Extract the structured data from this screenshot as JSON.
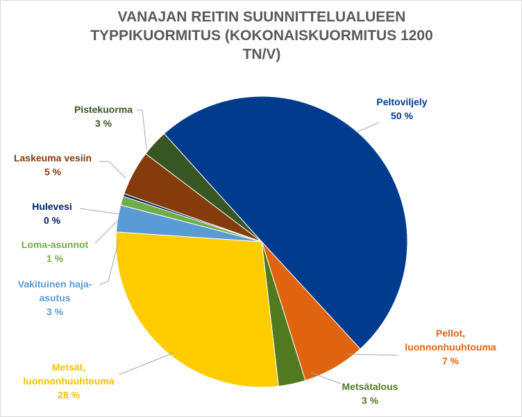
{
  "chart_data": {
    "type": "pie",
    "title": "VANAJAN REITIN SUUNNITTELUALUEEN TYPPIKUORMITUS (KOKONAISKUORMITUS 1200 TN/V)",
    "categories": [
      "Peltoviljely",
      "Pellot, luonnonhuuhtouma",
      "Metsätalous",
      "Metsät, luonnonhuuhtouma",
      "Vakituinen haja-asutus",
      "Loma-asunnot",
      "Hulevesi",
      "Laskeuma vesiin",
      "Pistekuorma"
    ],
    "values": [
      50,
      7,
      3,
      28,
      3,
      1,
      0.3,
      5,
      3
    ],
    "value_labels": [
      "50 %",
      "7 %",
      "3 %",
      "28 %",
      "3 %",
      "1 %",
      "0 %",
      "5 %",
      "3 %"
    ],
    "colors": [
      "#003b8e",
      "#e0640f",
      "#4f7a1f",
      "#ffcc00",
      "#5b9bd5",
      "#70ad47",
      "#002060",
      "#843c0c",
      "#375623"
    ]
  }
}
